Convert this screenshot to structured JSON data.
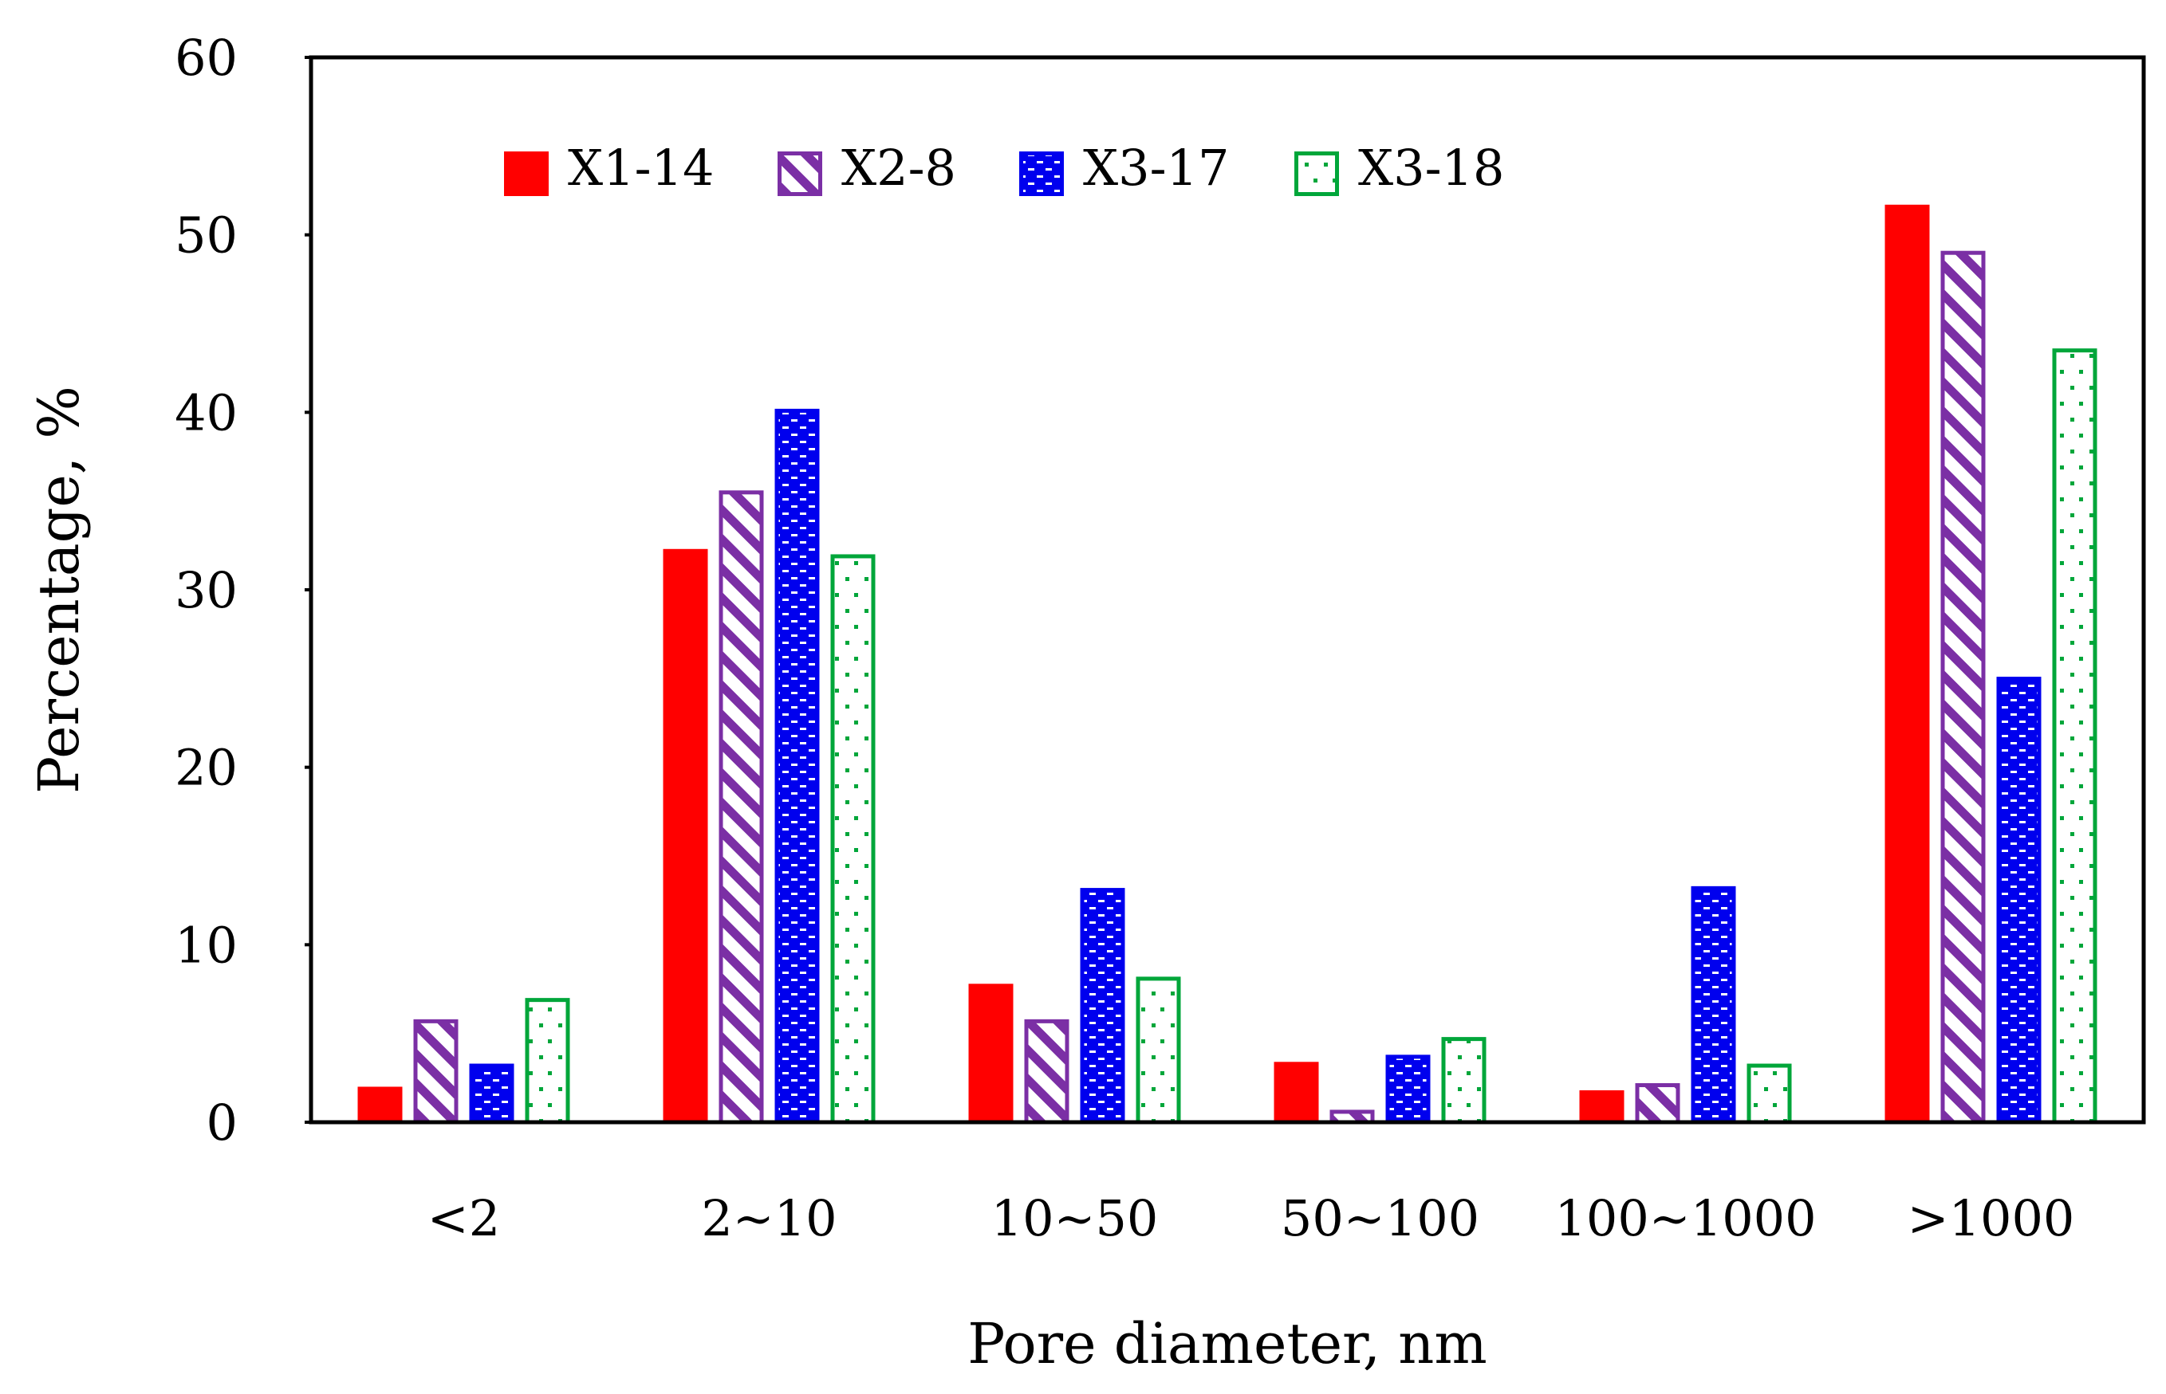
{
  "chart_data": {
    "type": "bar",
    "title": "",
    "xlabel": "Pore diameter, nm",
    "ylabel": "Percentage, %",
    "ylim": [
      0,
      60
    ],
    "yticks": [
      0,
      10,
      20,
      30,
      40,
      50,
      60
    ],
    "grid": false,
    "legend_position": "top-left",
    "categories": [
      "<2",
      "2~10",
      "10~50",
      "50~100",
      "100~1000",
      ">1000"
    ],
    "series": [
      {
        "name": "X1-14",
        "color": "#ff0000",
        "pattern": "solid",
        "values": [
          2.0,
          32.3,
          7.8,
          3.4,
          1.8,
          51.7
        ]
      },
      {
        "name": "X2-8",
        "color": "#7b2fa5",
        "pattern": "diagonal",
        "values": [
          5.8,
          35.6,
          5.8,
          0.7,
          2.2,
          49.1
        ]
      },
      {
        "name": "X3-17",
        "color": "#0000ee",
        "pattern": "dashes",
        "values": [
          3.3,
          40.2,
          13.2,
          3.8,
          13.3,
          25.1
        ]
      },
      {
        "name": "X3-18",
        "color": "#00a63a",
        "pattern": "dots",
        "values": [
          7.0,
          32.0,
          8.2,
          4.8,
          3.3,
          43.6
        ]
      }
    ]
  }
}
